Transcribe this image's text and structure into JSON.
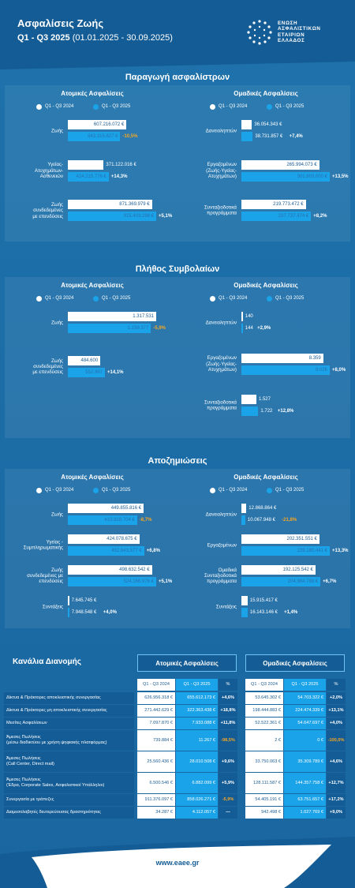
{
  "header": {
    "title": "Ασφαλίσεις Ζωής",
    "period": "Q1 - Q3 2025",
    "dates": "(01.01.2025 - 30.09.2025)",
    "logo": [
      "ΕΝΩΣΗ",
      "ΑΣΦΑΛΙΣΤΙΚΩΝ",
      "ΕΤΑΙΡΙΩΝ",
      "ΕΛΛΑΔΟΣ"
    ]
  },
  "sections": [
    {
      "title": "Παραγωγή ασφαλίστρων",
      "charts": [
        {
          "type": "bar",
          "title": "Ατομικές Ασφαλίσεις",
          "categories": [
            "Ζωής",
            "Υγείας-\nΑτυχημάτων-\nΑσθενειών",
            "Ζωής\nσυνδεδεμένες\nμε επενδύσεις"
          ],
          "series": [
            {
              "name": "Q1 - Q3 2024",
              "color": "#ffffff",
              "values": [
                607216072,
                371122016,
                871369979
              ],
              "value_labels": [
                "607.216.072 €",
                "371.122.016 €",
                "871.369.979 €"
              ]
            },
            {
              "name": "Q1 - Q3 2025",
              "color": "#1aa3e8",
              "values": [
                543315827,
                424215776,
                915403298
              ],
              "value_labels": [
                "543.315.827 €",
                "424.215.776 €",
                "915.403.298 €"
              ]
            }
          ],
          "changes": [
            "-10,5%",
            "+14,3%",
            "+5,1%"
          ]
        },
        {
          "type": "bar",
          "title": "Ομαδικές Ασφαλίσεις",
          "categories": [
            "Δανειοληπτών",
            "Εργαζομένων\n(Ζωής-Υγείας-\nΑτυχημάτων)",
            "Συνταξιοδοτικά\nπρογράμματα"
          ],
          "series": [
            {
              "name": "Q1 - Q3 2024",
              "color": "#ffffff",
              "values": [
                36054343,
                265994073,
                219773472
              ],
              "value_labels": [
                "36.054.343 €",
                "265.994.073 €",
                "219.773.472 €"
              ]
            },
            {
              "name": "Q1 - Q3 2025",
              "color": "#1aa3e8",
              "values": [
                38731857,
                301803000,
                237737474
              ],
              "value_labels": [
                "38.731.857 €",
                "301.803.000 €",
                "237.737.474 €"
              ]
            }
          ],
          "changes": [
            "+7,4%",
            "+13,5%",
            "+8,2%"
          ]
        }
      ]
    },
    {
      "title": "Πλήθος Συμβολαίων",
      "charts": [
        {
          "type": "bar",
          "title": "Ατομικές Ασφαλίσεις",
          "categories": [
            "Ζωής",
            "Ζωής\nσυνδεδεμένες\nμε επενδύσεις"
          ],
          "series": [
            {
              "name": "Q1 - Q3 2024",
              "color": "#ffffff",
              "values": [
                1317531,
                484600
              ],
              "value_labels": [
                "1.317.531",
                "484.600"
              ]
            },
            {
              "name": "Q1 - Q3 2025",
              "color": "#1aa3e8",
              "values": [
                1239377,
                552997
              ],
              "value_labels": [
                "1.239.377",
                "552.997"
              ]
            }
          ],
          "changes": [
            "-5,9%",
            "+14,1%"
          ]
        },
        {
          "type": "bar",
          "title": "Ομαδικές Ασφαλίσεις",
          "categories": [
            "Δανειοληπτών",
            "Εργαζομένων\n(Ζωής-Υγείας-\nΑτυχημάτων)",
            "Συνταξιοδοτικά\nπρογράμματα"
          ],
          "series": [
            {
              "name": "Q1 - Q3 2024",
              "color": "#ffffff",
              "values": [
                140,
                8359,
                1527
              ],
              "value_labels": [
                "140",
                "8.359",
                "1.527"
              ]
            },
            {
              "name": "Q1 - Q3 2025",
              "color": "#1aa3e8",
              "values": [
                144,
                9026,
                1722
              ],
              "value_labels": [
                "144",
                "9.026",
                "1.722"
              ]
            }
          ],
          "changes": [
            "+2,9%",
            "+8,0%",
            "+12,8%"
          ]
        }
      ]
    },
    {
      "title": "Αποζημιώσεις",
      "charts": [
        {
          "type": "bar",
          "title": "Ατομικές Ασφαλίσεις",
          "categories": [
            "Ζωής",
            "Υγείας -\nΣυμπληρωματικής",
            "Ζωής\nσυνδεδεμένες με\nεπενδύσεις",
            "Συντάξεις"
          ],
          "series": [
            {
              "name": "Q1 - Q3 2024",
              "color": "#ffffff",
              "values": [
                449855816,
                424078675,
                498632542,
                7645745
              ],
              "value_labels": [
                "449.855.816 €",
                "424.078.675 €",
                "498.632.542 €",
                "7.645.745 €"
              ]
            },
            {
              "name": "Q1 - Q3 2025",
              "color": "#1aa3e8",
              "values": [
                410818704,
                452843577,
                524166976,
                7948548
              ],
              "value_labels": [
                "410.818.704 €",
                "452.843.577 €",
                "524.166.976 €",
                "7.948.548 €"
              ]
            }
          ],
          "changes": [
            "-8,7%",
            "+6,8%",
            "+5,1%",
            "+4,0%"
          ]
        },
        {
          "type": "bar",
          "title": "Ομαδικές Ασφαλίσεις",
          "categories": [
            "Δανειοληπτών",
            "Εργαζομένων",
            "Ομαδικά\nΣυνταξιοδοτικά\nπρογράμματα",
            "Συντάξεις"
          ],
          "series": [
            {
              "name": "Q1 - Q3 2024",
              "color": "#ffffff",
              "values": [
                12868864,
                202351551,
                192125542,
                15915417
              ],
              "value_labels": [
                "12.868.864 €",
                "202.351.551 €",
                "192.125.542 €",
                "15.915.417 €"
              ]
            },
            {
              "name": "Q1 - Q3 2025",
              "color": "#1aa3e8",
              "values": [
                10067948,
                229180441,
                204984788,
                16143146
              ],
              "value_labels": [
                "10.067.948 €",
                "229.180.441 €",
                "204.984.788 €",
                "16.143.146 €"
              ]
            }
          ],
          "changes": [
            "-21,8%",
            "+13,3%",
            "+6,7%",
            "+1,4%"
          ]
        }
      ]
    }
  ],
  "distribution": {
    "title": "Κανάλια Διανομής",
    "groups": [
      "Ατομικές Ασφαλίσεις",
      "Ομαδικές Ασφαλίσεις"
    ],
    "columns": [
      "Q1 - Q3 2024",
      "Q1 - Q3 2025",
      "%"
    ],
    "rows": [
      {
        "channel": "Δίκτυα & Πράκτορες αποκλειστικής συνεργασίας",
        "individual": [
          "626.956.318 €",
          "655.612.173 €",
          "+4,6%"
        ],
        "group": [
          "53.645.302 €",
          "54.703.322 €",
          "+2,0%"
        ]
      },
      {
        "channel": "Δίκτυα & Πράκτορες μη αποκλειστικής συνεργασίας",
        "individual": [
          "271.442.629 €",
          "322.363.438 €",
          "+18,8%"
        ],
        "group": [
          "198.444.883 €",
          "224.474.339 €",
          "+13,1%"
        ]
      },
      {
        "channel": "Μεσίτες Ασφαλίσεων",
        "individual": [
          "7.097.870 €",
          "7.933.088 €",
          "+11,8%"
        ],
        "group": [
          "52.522.361 €",
          "54.647.697 €",
          "+4,0%"
        ]
      },
      {
        "channel": "Άμεσες Πωλήσεις\n(μέσω διαδικτύου με χρήση ψηφιακής πλατφόρμας)",
        "individual": [
          "739.884 €",
          "11.267 €",
          "-98,5%"
        ],
        "group": [
          "2 €",
          "0 €",
          "-100,0%"
        ]
      },
      {
        "channel": "Άμεσες Πωλήσεις\n(Call Center,  Direct mail)",
        "individual": [
          "25.560.436 €",
          "28.010.508 €",
          "+9,6%"
        ],
        "group": [
          "33.750.063 €",
          "35.309.789 €",
          "+4,6%"
        ]
      },
      {
        "channel": "Άμεσες Πωλήσεις\n(Έδρα, Corporate Sales, Ασφαλιστικοί Υπάλληλοι)",
        "individual": [
          "6.500.546 €",
          "6.882.099 €",
          "+5,9%"
        ],
        "group": [
          "128.111.587 €",
          "144.357.758 €",
          "+12,7%"
        ]
      },
      {
        "channel": "Συνεργασία με τράπεζες",
        "individual": [
          "911.376.097 €",
          "858.026.271 €",
          "-5,9%"
        ],
        "group": [
          "54.405.191 €",
          "63.751.657 €",
          "+17,2%"
        ]
      },
      {
        "channel": "Διαμεσολαβητές δευτερεύουσας δραστηριότητας",
        "individual": [
          "34.287 €",
          "4.112.057 €",
          "—"
        ],
        "group": [
          "942.498 €",
          "1.027.769 €",
          "+9,0%"
        ]
      }
    ]
  },
  "footer": "www.eaee.gr"
}
